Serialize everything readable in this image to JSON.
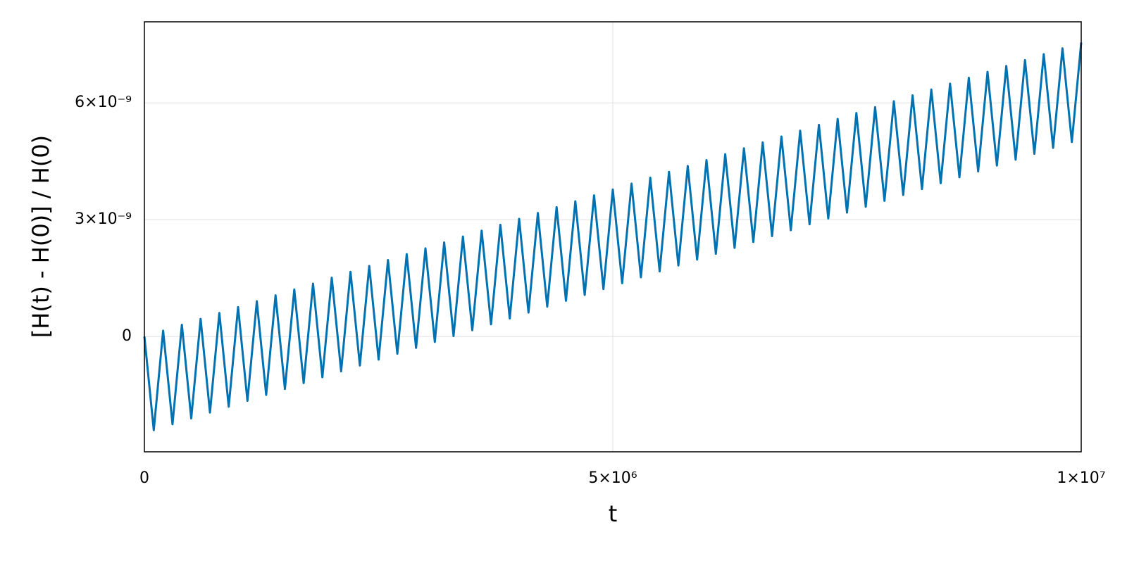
{
  "chart_data": {
    "type": "line",
    "xlabel": "t",
    "ylabel": "[H(t) - H(0)] / H(0)",
    "x": [
      0,
      100000,
      200000,
      300000,
      400000,
      500000,
      600000,
      700000,
      800000,
      900000,
      1000000,
      1100000,
      1200000,
      1300000,
      1400000,
      1500000,
      1600000,
      1700000,
      1800000,
      1900000,
      2000000,
      2100000,
      2200000,
      2300000,
      2400000,
      2500000,
      2600000,
      2700000,
      2800000,
      2900000,
      3000000,
      3100000,
      3200000,
      3300000,
      3400000,
      3500000,
      3600000,
      3700000,
      3800000,
      3900000,
      4000000,
      4100000,
      4200000,
      4300000,
      4400000,
      4500000,
      4600000,
      4700000,
      4800000,
      4900000,
      5000000,
      5100000,
      5200000,
      5300000,
      5400000,
      5500000,
      5600000,
      5700000,
      5800000,
      5900000,
      6000000,
      6100000,
      6200000,
      6300000,
      6400000,
      6500000,
      6600000,
      6700000,
      6800000,
      6900000,
      7000000,
      7100000,
      7200000,
      7300000,
      7400000,
      7500000,
      7600000,
      7700000,
      7800000,
      7900000,
      8000000,
      8100000,
      8200000,
      8300000,
      8400000,
      8500000,
      8600000,
      8700000,
      8800000,
      8900000,
      9000000,
      9100000,
      9200000,
      9300000,
      9400000,
      9500000,
      9600000,
      9700000,
      9800000,
      9900000,
      10000000
    ],
    "series": [
      {
        "color": "#0072b2",
        "values": [
          0,
          -2.4045e-09,
          1.51e-10,
          -2.2535e-09,
          3.02e-10,
          -2.1025e-09,
          4.53e-10,
          -1.9515e-09,
          6.04e-10,
          -1.8005e-09,
          7.55e-10,
          -1.6495e-09,
          9.06e-10,
          -1.4985e-09,
          1.057e-09,
          -1.3475e-09,
          1.208e-09,
          -1.1965e-09,
          1.359e-09,
          -1.0455e-09,
          1.51e-09,
          -8.945e-10,
          1.661e-09,
          -7.435e-10,
          1.812e-09,
          -5.925e-10,
          1.963e-09,
          -4.415e-10,
          2.114e-09,
          -2.905e-10,
          2.265e-09,
          -1.395e-10,
          2.416e-09,
          1.15e-11,
          2.567e-09,
          1.625e-10,
          2.718e-09,
          3.135e-10,
          2.869e-09,
          4.645e-10,
          3.02e-09,
          6.155e-10,
          3.171e-09,
          7.665e-10,
          3.322e-09,
          9.175e-10,
          3.473e-09,
          1.0685e-09,
          3.624e-09,
          1.2195e-09,
          3.775e-09,
          1.3705e-09,
          3.926e-09,
          1.5215e-09,
          4.077e-09,
          1.6725e-09,
          4.228e-09,
          1.8235e-09,
          4.379e-09,
          1.9745e-09,
          4.53e-09,
          2.1255e-09,
          4.681e-09,
          2.2765e-09,
          4.832e-09,
          2.4275e-09,
          4.983e-09,
          2.5785e-09,
          5.134e-09,
          2.7295e-09,
          5.285e-09,
          2.8805e-09,
          5.436e-09,
          3.0315e-09,
          5.587e-09,
          3.1825e-09,
          5.738e-09,
          3.3335e-09,
          5.889e-09,
          3.4845e-09,
          6.04e-09,
          3.6355e-09,
          6.191e-09,
          3.7865e-09,
          6.342e-09,
          3.9375e-09,
          6.493e-09,
          4.0885e-09,
          6.644e-09,
          4.2395e-09,
          6.795e-09,
          4.3905e-09,
          6.946e-09,
          4.5415e-09,
          7.097e-09,
          4.6925e-09,
          7.248e-09,
          4.8435e-09,
          7.399e-09,
          4.9945e-09,
          7.55e-09
        ]
      }
    ],
    "xlim": [
      0,
      10000000
    ],
    "ylim": [
      -2.96e-09,
      8.08e-09
    ],
    "xticks": [
      0,
      {
        "value": 5000000,
        "label": "5×10⁶"
      },
      {
        "value": 10000000,
        "label": "1×10⁷"
      }
    ],
    "yticks": [
      0,
      {
        "value": 3e-09,
        "label": "3×10⁻⁹"
      },
      {
        "value": 6e-09,
        "label": "6×10⁻⁹"
      }
    ],
    "grid": true
  }
}
